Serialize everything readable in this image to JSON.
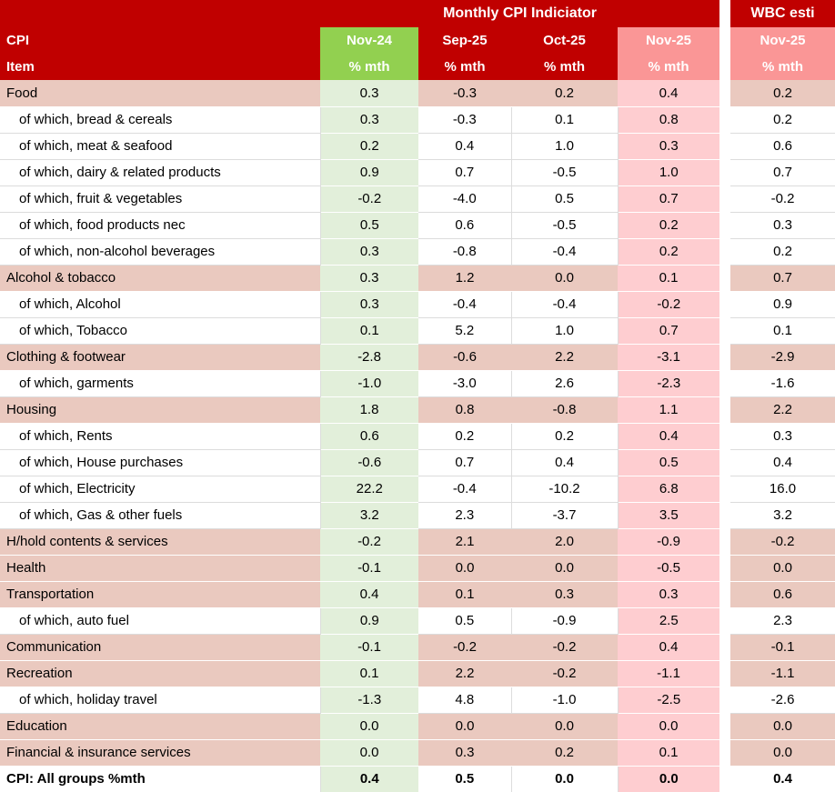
{
  "colors": {
    "header_dark_red": "#C00000",
    "header_green": "#92D050",
    "header_salmon": "#FA9696",
    "cell_light_green": "#E2EFDA",
    "cell_light_pink": "#FECDD0",
    "cell_tan": "#EAC9BF",
    "header_text": "#FFFFFF",
    "body_text": "#000000"
  },
  "header": {
    "title": "Monthly CPI Indiciator",
    "wbc_title": "WBC esti",
    "corner_line1": "CPI",
    "corner_line2": "Item",
    "columns": [
      {
        "label": "Nov-24",
        "sub": "% mth"
      },
      {
        "label": "Sep-25",
        "sub": "% mth"
      },
      {
        "label": "Oct-25",
        "sub": "% mth"
      },
      {
        "label": "Nov-25",
        "sub": "% mth"
      },
      {
        "label": "Nov-25",
        "sub": "% mth"
      }
    ]
  },
  "chart_data": {
    "type": "table",
    "title": "Monthly CPI Indiciator",
    "column_headers": [
      "CPI Item",
      "Nov-24 % mth",
      "Sep-25 % mth",
      "Oct-25 % mth",
      "Nov-25 % mth",
      "WBC esti Nov-25 % mth"
    ],
    "rows": [
      {
        "label": "Food",
        "type": "category",
        "values": [
          "0.3",
          "-0.3",
          "0.2",
          "0.4",
          "0.2"
        ]
      },
      {
        "label": "of which, bread & cereals",
        "type": "sub",
        "values": [
          "0.3",
          "-0.3",
          "0.1",
          "0.8",
          "0.2"
        ]
      },
      {
        "label": "of which, meat & seafood",
        "type": "sub",
        "values": [
          "0.2",
          "0.4",
          "1.0",
          "0.3",
          "0.6"
        ]
      },
      {
        "label": "of which, dairy & related products",
        "type": "sub",
        "values": [
          "0.9",
          "0.7",
          "-0.5",
          "1.0",
          "0.7"
        ]
      },
      {
        "label": "of which, fruit & vegetables",
        "type": "sub",
        "values": [
          "-0.2",
          "-4.0",
          "0.5",
          "0.7",
          "-0.2"
        ]
      },
      {
        "label": "of which, food products nec",
        "type": "sub",
        "values": [
          "0.5",
          "0.6",
          "-0.5",
          "0.2",
          "0.3"
        ]
      },
      {
        "label": "of which, non-alcohol beverages",
        "type": "sub",
        "values": [
          "0.3",
          "-0.8",
          "-0.4",
          "0.2",
          "0.2"
        ]
      },
      {
        "label": "Alcohol & tobacco",
        "type": "category",
        "values": [
          "0.3",
          "1.2",
          "0.0",
          "0.1",
          "0.7"
        ]
      },
      {
        "label": "of which, Alcohol",
        "type": "sub",
        "values": [
          "0.3",
          "-0.4",
          "-0.4",
          "-0.2",
          "0.9"
        ]
      },
      {
        "label": "of which, Tobacco",
        "type": "sub",
        "values": [
          "0.1",
          "5.2",
          "1.0",
          "0.7",
          "0.1"
        ]
      },
      {
        "label": "Clothing & footwear",
        "type": "category",
        "values": [
          "-2.8",
          "-0.6",
          "2.2",
          "-3.1",
          "-2.9"
        ]
      },
      {
        "label": "of which, garments",
        "type": "sub",
        "values": [
          "-1.0",
          "-3.0",
          "2.6",
          "-2.3",
          "-1.6"
        ]
      },
      {
        "label": "Housing",
        "type": "category",
        "values": [
          "1.8",
          "0.8",
          "-0.8",
          "1.1",
          "2.2"
        ]
      },
      {
        "label": "of which, Rents",
        "type": "sub",
        "values": [
          "0.6",
          "0.2",
          "0.2",
          "0.4",
          "0.3"
        ]
      },
      {
        "label": "of which, House purchases",
        "type": "sub",
        "values": [
          "-0.6",
          "0.7",
          "0.4",
          "0.5",
          "0.4"
        ]
      },
      {
        "label": "of which, Electricity",
        "type": "sub",
        "values": [
          "22.2",
          "-0.4",
          "-10.2",
          "6.8",
          "16.0"
        ]
      },
      {
        "label": "of which, Gas & other fuels",
        "type": "sub",
        "values": [
          "3.2",
          "2.3",
          "-3.7",
          "3.5",
          "3.2"
        ]
      },
      {
        "label": "H/hold contents & services",
        "type": "category",
        "values": [
          "-0.2",
          "2.1",
          "2.0",
          "-0.9",
          "-0.2"
        ]
      },
      {
        "label": "Health",
        "type": "category",
        "values": [
          "-0.1",
          "0.0",
          "0.0",
          "-0.5",
          "0.0"
        ]
      },
      {
        "label": "Transportation",
        "type": "category",
        "values": [
          "0.4",
          "0.1",
          "0.3",
          "0.3",
          "0.6"
        ]
      },
      {
        "label": "of which, auto fuel",
        "type": "sub",
        "values": [
          "0.9",
          "0.5",
          "-0.9",
          "2.5",
          "2.3"
        ]
      },
      {
        "label": "Communication",
        "type": "category",
        "values": [
          "-0.1",
          "-0.2",
          "-0.2",
          "0.4",
          "-0.1"
        ]
      },
      {
        "label": "Recreation",
        "type": "category",
        "values": [
          "0.1",
          "2.2",
          "-0.2",
          "-1.1",
          "-1.1"
        ]
      },
      {
        "label": "of which, holiday travel",
        "type": "sub",
        "values": [
          "-1.3",
          "4.8",
          "-1.0",
          "-2.5",
          "-2.6"
        ]
      },
      {
        "label": "Education",
        "type": "category",
        "values": [
          "0.0",
          "0.0",
          "0.0",
          "0.0",
          "0.0"
        ]
      },
      {
        "label": "Financial & insurance services",
        "type": "category",
        "values": [
          "0.0",
          "0.3",
          "0.2",
          "0.1",
          "0.0"
        ]
      },
      {
        "label": "CPI: All groups %mth",
        "type": "total",
        "values": [
          "0.4",
          "0.5",
          "0.0",
          "0.0",
          "0.4"
        ]
      }
    ]
  }
}
